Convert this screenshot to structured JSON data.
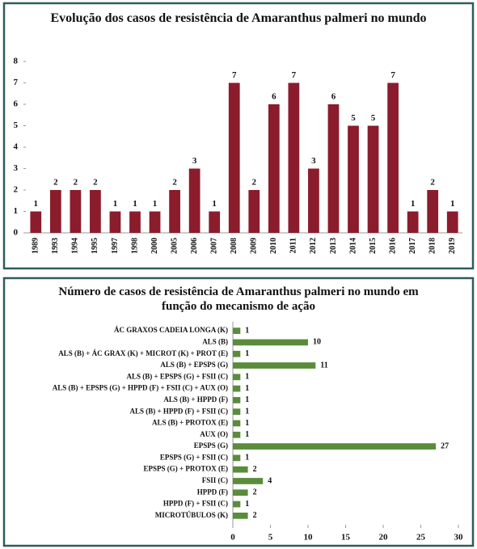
{
  "chart_data": [
    {
      "type": "bar",
      "title": "Evolução dos casos de resistência de Amaranthus palmeri no mundo",
      "categories": [
        "1989",
        "1993",
        "1994",
        "1995",
        "1997",
        "1998",
        "2000",
        "2005",
        "2006",
        "2007",
        "2008",
        "2009",
        "2010",
        "2011",
        "2012",
        "2013",
        "2014",
        "2015",
        "2016",
        "2017",
        "2018",
        "2019"
      ],
      "values": [
        1,
        2,
        2,
        2,
        1,
        1,
        1,
        2,
        3,
        1,
        7,
        2,
        6,
        7,
        3,
        6,
        5,
        5,
        7,
        1,
        2,
        1
      ],
      "color": "#8b1c2c",
      "ylim": [
        0,
        8
      ],
      "yticks": [
        0,
        1,
        2,
        3,
        4,
        5,
        6,
        7,
        8
      ]
    },
    {
      "type": "hbar",
      "title": "Número de casos de resistência de Amaranthus palmeri no mundo em função do mecanismo de ação",
      "categories": [
        "ÁC GRAXOS CADEIA LONGA (K)",
        "ALS (B)",
        "ALS (B) + ÁC GRAX (K) + MICROT (K) + PROT (E)",
        "ALS (B) + EPSPS (G)",
        "ALS (B) + EPSPS (G) + FSII (C)",
        "ALS (B) + EPSPS (G) + HPPD (F) + FSII (C) + AUX (O)",
        "ALS (B) + HPPD (F)",
        "ALS (B) + HPPD (F) + FSII (C)",
        "ALS (B) + PROTOX (E)",
        "AUX (O)",
        "EPSPS (G)",
        "EPSPS (G) + FSII (C)",
        "EPSPS (G) + PROTOX (E)",
        "FSII (C)",
        "HPPD (F)",
        "HPPD (F) + FSII (C)",
        "MICROTÚBULOS (K)"
      ],
      "values": [
        1,
        10,
        1,
        11,
        1,
        1,
        1,
        1,
        1,
        1,
        27,
        1,
        2,
        4,
        2,
        1,
        2
      ],
      "color": "#5a8c3c",
      "xlim": [
        0,
        30
      ],
      "xticks": [
        0,
        5,
        10,
        15,
        20,
        25,
        30
      ]
    }
  ]
}
